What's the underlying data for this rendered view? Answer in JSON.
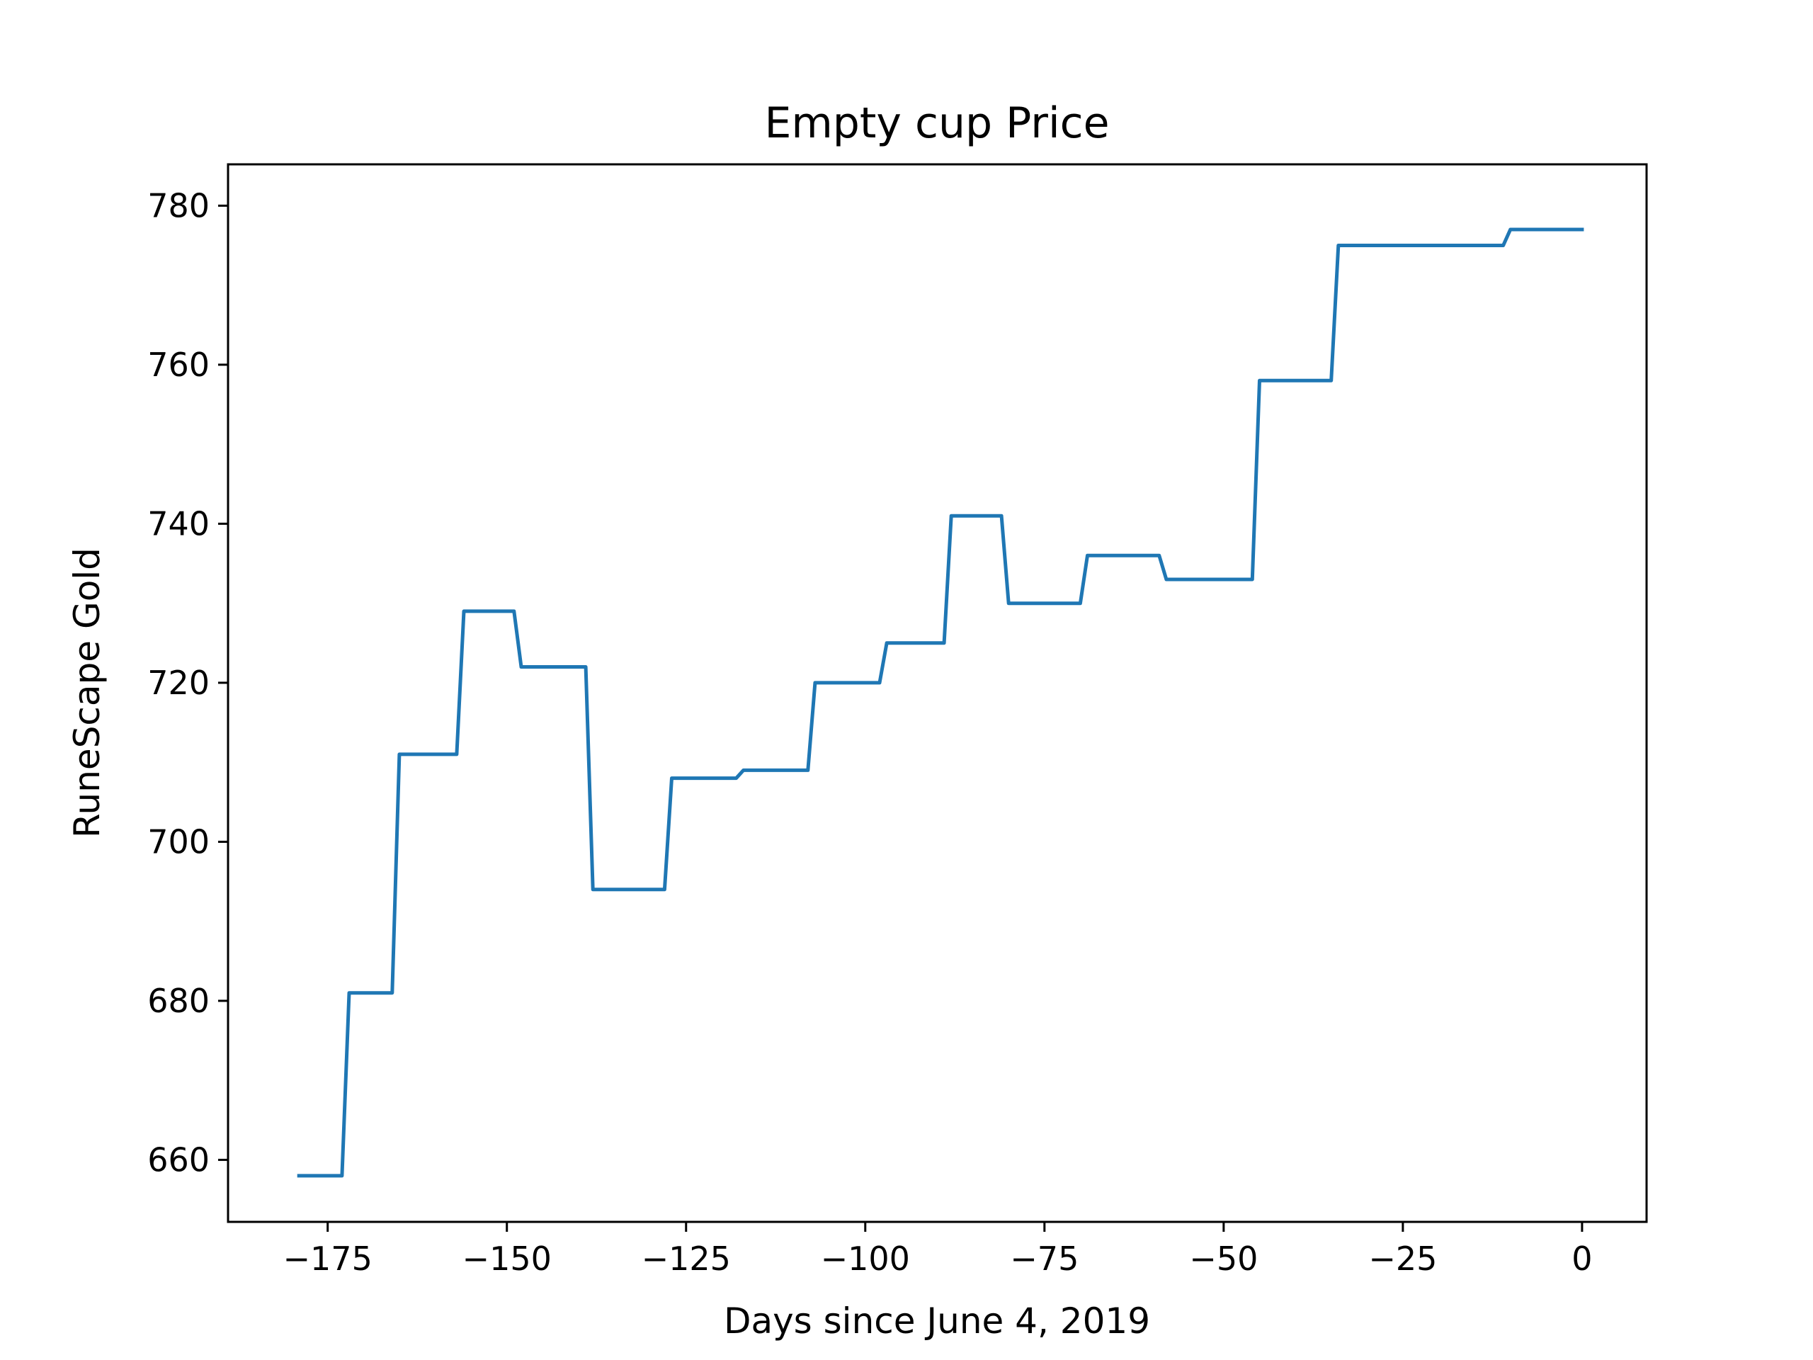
{
  "chart_data": {
    "type": "line",
    "title": "Empty cup Price",
    "xlabel": "Days since June 4, 2019",
    "ylabel": "RuneScape Gold",
    "xlim": [
      -188.9,
      9
    ],
    "ylim": [
      652.2,
      785.2
    ],
    "x_ticks": [
      -175,
      -150,
      -125,
      -100,
      -75,
      -50,
      -25,
      0
    ],
    "x_tick_labels": [
      "−175",
      "−150",
      "−125",
      "−100",
      "−75",
      "−50",
      "−25",
      "0"
    ],
    "y_ticks": [
      660,
      680,
      700,
      720,
      740,
      760,
      780
    ],
    "y_tick_labels": [
      "660",
      "680",
      "700",
      "720",
      "740",
      "760",
      "780"
    ],
    "grid": false,
    "legend": "none",
    "series": [
      {
        "color": "#1f77b4",
        "x": [
          -179,
          -173,
          -172,
          -166,
          -165,
          -157,
          -156,
          -149,
          -148,
          -139,
          -138,
          -128,
          -127,
          -118,
          -117,
          -108,
          -107,
          -98,
          -97,
          -89,
          -88,
          -81,
          -80,
          -70,
          -69,
          -59,
          -58,
          -46,
          -45,
          -35,
          -34,
          -11,
          -10,
          0
        ],
        "y": [
          658,
          658,
          681,
          681,
          711,
          711,
          729,
          729,
          722,
          722,
          694,
          694,
          708,
          708,
          709,
          709,
          720,
          720,
          725,
          725,
          741,
          741,
          730,
          730,
          736,
          736,
          733,
          733,
          758,
          758,
          775,
          775,
          777,
          777
        ]
      }
    ]
  }
}
